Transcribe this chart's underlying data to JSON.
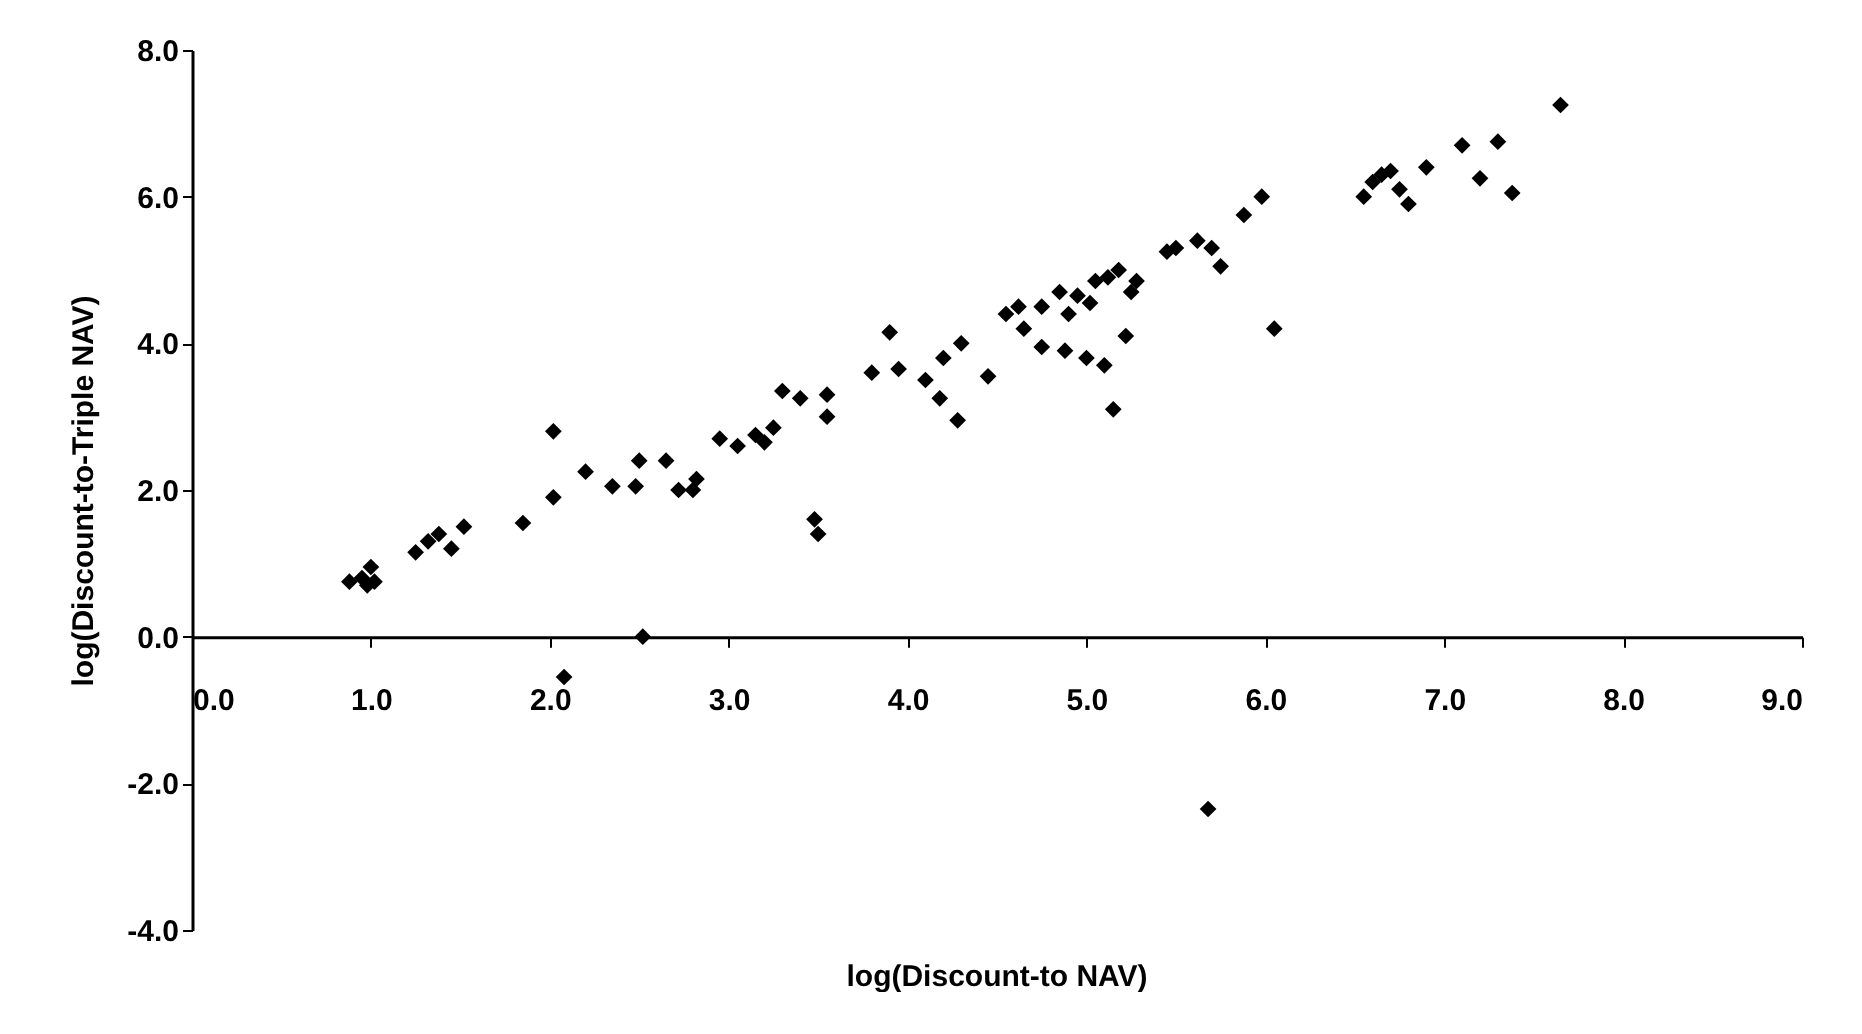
{
  "chart_data": {
    "type": "scatter",
    "xlabel": "log(Discount-to NAV)",
    "ylabel": "log(Discount-to-Triple NAV)",
    "marker": "diamond",
    "grid": false,
    "xlim": [
      0,
      9
    ],
    "ylim": [
      -4,
      8
    ],
    "xticks": [
      {
        "value": 0,
        "label": "0.0"
      },
      {
        "value": 1,
        "label": "1.0"
      },
      {
        "value": 2,
        "label": "2.0"
      },
      {
        "value": 3,
        "label": "3.0"
      },
      {
        "value": 4,
        "label": "4.0"
      },
      {
        "value": 5,
        "label": "5.0"
      },
      {
        "value": 6,
        "label": "6.0"
      },
      {
        "value": 7,
        "label": "7.0"
      },
      {
        "value": 8,
        "label": "8.0"
      },
      {
        "value": 9,
        "label": "9.0"
      }
    ],
    "yticks": [
      {
        "value": -4,
        "label": "-4.0"
      },
      {
        "value": -2,
        "label": "-2.0"
      },
      {
        "value": 0,
        "label": "0.0"
      },
      {
        "value": 2,
        "label": "2.0"
      },
      {
        "value": 4,
        "label": "4.0"
      },
      {
        "value": 6,
        "label": "6.0"
      },
      {
        "value": 8,
        "label": "8.0"
      }
    ],
    "series": [
      {
        "color": "#000000",
        "x": [
          0.88,
          0.95,
          1.0,
          1.02,
          0.98,
          1.25,
          1.32,
          1.38,
          1.45,
          1.52,
          1.85,
          2.02,
          2.02,
          2.08,
          2.2,
          2.35,
          2.48,
          2.5,
          2.52,
          2.65,
          2.72,
          2.8,
          2.82,
          2.95,
          3.05,
          3.15,
          3.2,
          3.25,
          3.3,
          3.4,
          3.48,
          3.5,
          3.55,
          3.55,
          3.8,
          3.9,
          3.95,
          4.1,
          4.18,
          4.2,
          4.28,
          4.3,
          4.45,
          4.55,
          4.62,
          4.65,
          4.75,
          4.75,
          4.85,
          4.88,
          4.9,
          4.95,
          5.0,
          5.02,
          5.05,
          5.1,
          5.12,
          5.15,
          5.18,
          5.22,
          5.25,
          5.28,
          5.45,
          5.5,
          5.62,
          5.68,
          5.7,
          5.75,
          5.88,
          5.98,
          6.05,
          6.55,
          6.6,
          6.65,
          6.7,
          6.75,
          6.8,
          6.9,
          7.1,
          7.2,
          7.3,
          7.38,
          7.65
        ],
        "values": [
          0.75,
          0.8,
          0.95,
          0.75,
          0.7,
          1.15,
          1.3,
          1.4,
          1.2,
          1.5,
          1.55,
          1.9,
          2.8,
          -0.55,
          2.25,
          2.05,
          2.05,
          2.4,
          0.0,
          2.4,
          2.0,
          2.0,
          2.15,
          2.7,
          2.6,
          2.75,
          2.65,
          2.85,
          3.35,
          3.25,
          1.6,
          1.4,
          3.0,
          3.3,
          3.6,
          4.15,
          3.65,
          3.5,
          3.25,
          3.8,
          2.95,
          4.0,
          3.55,
          4.4,
          4.5,
          4.2,
          4.5,
          3.95,
          4.7,
          3.9,
          4.4,
          4.65,
          3.8,
          4.55,
          4.85,
          3.7,
          4.9,
          3.1,
          5.0,
          4.1,
          4.7,
          4.85,
          5.25,
          5.3,
          5.4,
          -2.35,
          5.3,
          5.05,
          5.75,
          6.0,
          4.2,
          6.0,
          6.2,
          6.3,
          6.35,
          6.1,
          5.9,
          6.4,
          6.7,
          6.25,
          6.75,
          6.05,
          7.25
        ]
      }
    ]
  }
}
